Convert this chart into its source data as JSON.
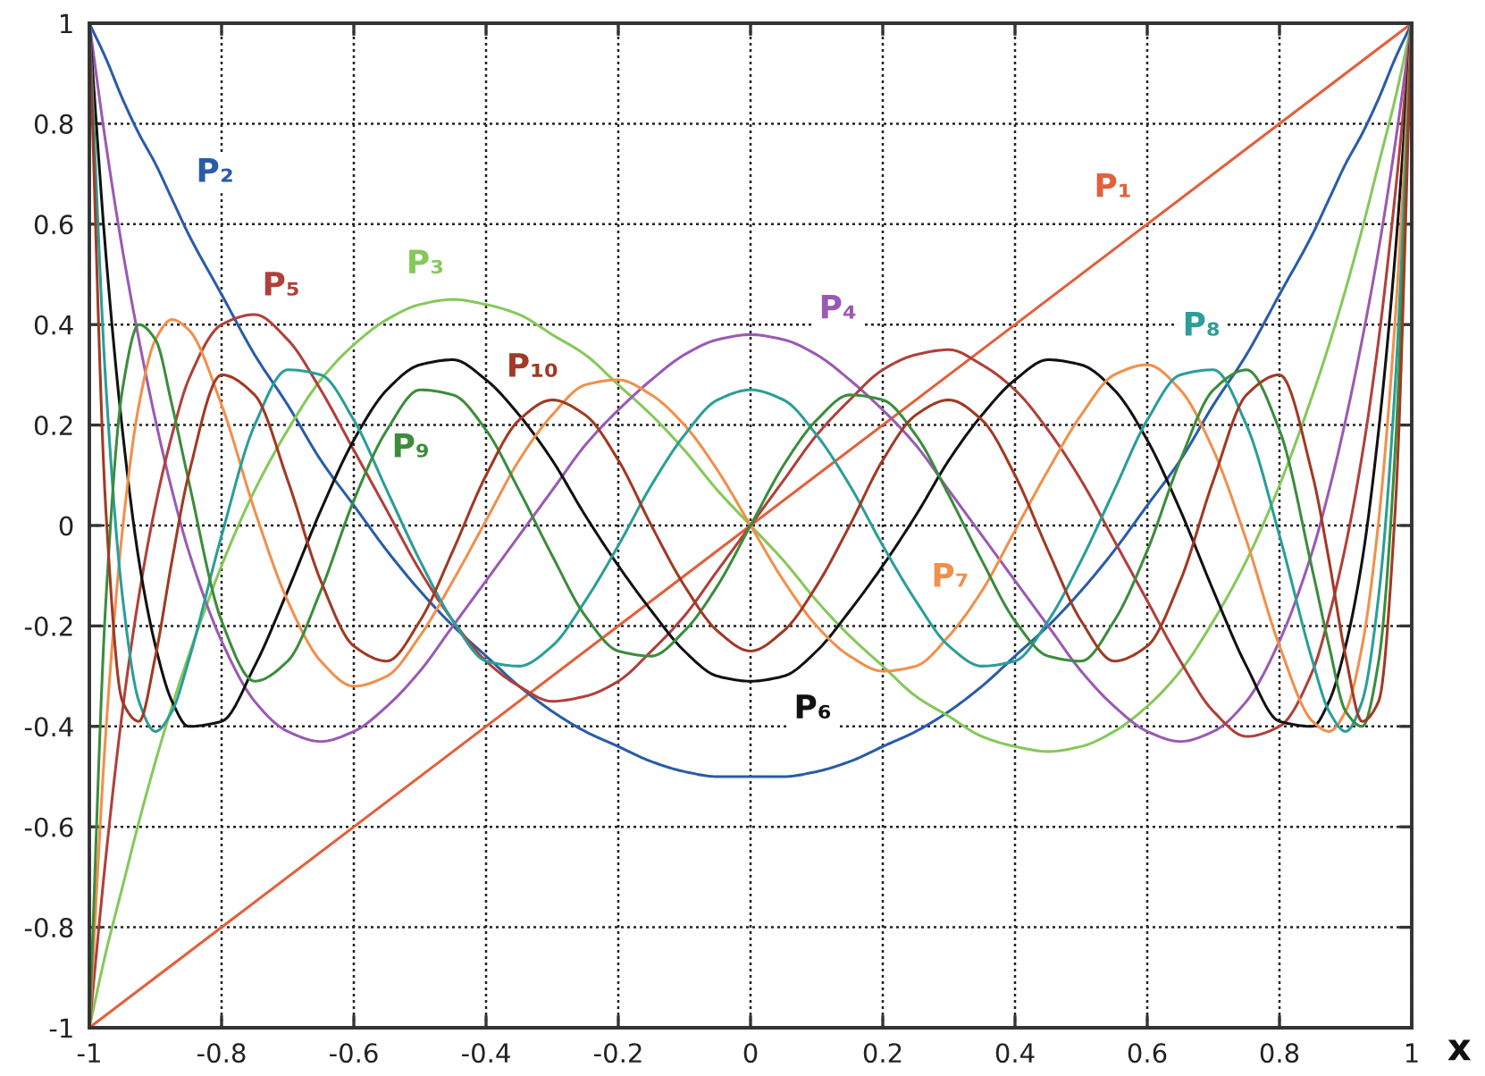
{
  "chart_data": {
    "type": "line",
    "xlabel": "x",
    "xlim": [
      -1,
      1
    ],
    "ylim": [
      -1,
      1
    ],
    "xticks": [
      -1,
      -0.8,
      -0.6,
      -0.4,
      -0.2,
      0,
      0.2,
      0.4,
      0.6,
      0.8,
      1
    ],
    "yticks": [
      -1,
      -0.8,
      -0.6,
      -0.4,
      -0.2,
      0,
      0.2,
      0.4,
      0.6,
      0.8,
      1
    ],
    "grid": true,
    "x": [
      -1,
      -0.975,
      -0.95,
      -0.925,
      -0.9,
      -0.875,
      -0.85,
      -0.8,
      -0.75,
      -0.7,
      -0.65,
      -0.6,
      -0.55,
      -0.5,
      -0.45,
      -0.4,
      -0.35,
      -0.3,
      -0.25,
      -0.2,
      -0.15,
      -0.1,
      -0.05,
      0,
      0.05,
      0.1,
      0.15,
      0.2,
      0.25,
      0.3,
      0.35,
      0.4,
      0.45,
      0.5,
      0.55,
      0.6,
      0.65,
      0.7,
      0.75,
      0.8,
      0.85,
      0.875,
      0.9,
      0.925,
      0.95,
      0.975,
      1
    ],
    "series": [
      {
        "name": "P₁",
        "color": "#e2603c",
        "x": [
          -1,
          1
        ],
        "values": [
          -1,
          1
        ]
      },
      {
        "name": "P₂",
        "color": "#2a5ca8",
        "values": [
          1,
          0.93,
          0.85,
          0.78,
          0.72,
          0.65,
          0.58,
          0.46,
          0.34,
          0.24,
          0.13,
          0.04,
          -0.05,
          -0.13,
          -0.2,
          -0.26,
          -0.32,
          -0.37,
          -0.41,
          -0.44,
          -0.47,
          -0.49,
          -0.5,
          -0.5,
          -0.5,
          -0.49,
          -0.47,
          -0.44,
          -0.41,
          -0.37,
          -0.32,
          -0.26,
          -0.2,
          -0.13,
          -0.05,
          0.04,
          0.13,
          0.24,
          0.34,
          0.46,
          0.58,
          0.65,
          0.72,
          0.78,
          0.85,
          0.93,
          1
        ]
      },
      {
        "name": "P₃",
        "color": "#86c85a",
        "values": [
          -1,
          -0.85,
          -0.72,
          -0.59,
          -0.47,
          -0.36,
          -0.26,
          -0.08,
          0.07,
          0.19,
          0.29,
          0.36,
          0.41,
          0.44,
          0.45,
          0.44,
          0.42,
          0.38,
          0.34,
          0.28,
          0.22,
          0.15,
          0.07,
          0,
          -0.07,
          -0.15,
          -0.22,
          -0.28,
          -0.34,
          -0.38,
          -0.42,
          -0.44,
          -0.45,
          -0.44,
          -0.41,
          -0.36,
          -0.29,
          -0.19,
          -0.07,
          0.08,
          0.26,
          0.36,
          0.47,
          0.59,
          0.72,
          0.85,
          1
        ]
      },
      {
        "name": "P₄",
        "color": "#9a5ab4",
        "values": [
          1,
          0.76,
          0.55,
          0.37,
          0.21,
          0.07,
          -0.05,
          -0.23,
          -0.35,
          -0.41,
          -0.43,
          -0.41,
          -0.36,
          -0.29,
          -0.2,
          -0.11,
          -0.02,
          0.07,
          0.16,
          0.23,
          0.29,
          0.34,
          0.37,
          0.38,
          0.37,
          0.34,
          0.29,
          0.23,
          0.16,
          0.07,
          -0.02,
          -0.11,
          -0.2,
          -0.29,
          -0.36,
          -0.41,
          -0.43,
          -0.41,
          -0.35,
          -0.23,
          -0.05,
          0.07,
          0.21,
          0.37,
          0.55,
          0.76,
          1
        ]
      },
      {
        "name": "P₅",
        "color": "#b0403a",
        "values": [
          -1,
          -0.66,
          -0.37,
          -0.14,
          0.04,
          0.18,
          0.29,
          0.4,
          0.42,
          0.37,
          0.27,
          0.15,
          0.03,
          -0.09,
          -0.19,
          -0.27,
          -0.32,
          -0.35,
          -0.34,
          -0.31,
          -0.25,
          -0.18,
          -0.09,
          0,
          0.09,
          0.18,
          0.25,
          0.31,
          0.34,
          0.35,
          0.32,
          0.27,
          0.19,
          0.09,
          -0.03,
          -0.15,
          -0.27,
          -0.37,
          -0.42,
          -0.4,
          -0.29,
          -0.18,
          -0.04,
          0.14,
          0.37,
          0.66,
          1
        ]
      },
      {
        "name": "P₆",
        "color": "#111111",
        "values": [
          1,
          0.54,
          0.19,
          -0.07,
          -0.24,
          -0.35,
          -0.4,
          -0.39,
          -0.28,
          -0.13,
          0.03,
          0.17,
          0.27,
          0.32,
          0.33,
          0.29,
          0.22,
          0.13,
          0.02,
          -0.08,
          -0.17,
          -0.25,
          -0.3,
          -0.31,
          -0.3,
          -0.25,
          -0.17,
          -0.08,
          0.02,
          0.13,
          0.22,
          0.29,
          0.33,
          0.32,
          0.27,
          0.17,
          0.03,
          -0.13,
          -0.28,
          -0.39,
          -0.4,
          -0.35,
          -0.24,
          -0.07,
          0.19,
          0.54,
          1
        ]
      },
      {
        "name": "P₇",
        "color": "#f0904c",
        "values": [
          -1,
          -0.41,
          -0.01,
          0.24,
          0.37,
          0.41,
          0.39,
          0.24,
          0.03,
          -0.15,
          -0.27,
          -0.32,
          -0.3,
          -0.22,
          -0.11,
          0.01,
          0.13,
          0.22,
          0.28,
          0.29,
          0.26,
          0.2,
          0.11,
          0,
          -0.11,
          -0.2,
          -0.26,
          -0.29,
          -0.28,
          -0.22,
          -0.13,
          -0.01,
          0.11,
          0.22,
          0.3,
          0.32,
          0.27,
          0.15,
          -0.03,
          -0.24,
          -0.39,
          -0.41,
          -0.37,
          -0.24,
          0.01,
          0.41,
          1
        ]
      },
      {
        "name": "P₈",
        "color": "#2a9e98",
        "values": [
          1,
          0.28,
          -0.14,
          -0.35,
          -0.41,
          -0.37,
          -0.27,
          -0.02,
          0.2,
          0.31,
          0.3,
          0.21,
          0.07,
          -0.07,
          -0.19,
          -0.27,
          -0.28,
          -0.24,
          -0.15,
          -0.04,
          0.08,
          0.18,
          0.25,
          0.27,
          0.25,
          0.18,
          0.08,
          -0.04,
          -0.15,
          -0.24,
          -0.28,
          -0.27,
          -0.19,
          -0.07,
          0.07,
          0.21,
          0.3,
          0.31,
          0.2,
          -0.02,
          -0.27,
          -0.37,
          -0.41,
          -0.35,
          -0.14,
          0.28,
          1
        ]
      },
      {
        "name": "P₉",
        "color": "#3c8c3c",
        "values": [
          -1,
          -0.15,
          0.27,
          0.4,
          0.37,
          0.24,
          0.09,
          -0.19,
          -0.31,
          -0.27,
          -0.13,
          0.05,
          0.19,
          0.27,
          0.26,
          0.19,
          0.07,
          -0.06,
          -0.18,
          -0.25,
          -0.26,
          -0.21,
          -0.12,
          0,
          0.12,
          0.21,
          0.26,
          0.25,
          0.18,
          0.06,
          -0.07,
          -0.19,
          -0.26,
          -0.27,
          -0.19,
          -0.05,
          0.13,
          0.27,
          0.31,
          0.19,
          -0.09,
          -0.24,
          -0.37,
          -0.4,
          -0.27,
          0.15,
          1
        ]
      },
      {
        "name": "P₁₀",
        "color": "#a03a24",
        "values": [
          1,
          0.03,
          -0.35,
          -0.39,
          -0.26,
          -0.07,
          0.1,
          0.3,
          0.26,
          0.09,
          -0.11,
          -0.24,
          -0.27,
          -0.19,
          -0.05,
          0.1,
          0.21,
          0.25,
          0.22,
          0.13,
          0,
          -0.12,
          -0.21,
          -0.25,
          -0.21,
          -0.12,
          0,
          0.13,
          0.22,
          0.25,
          0.21,
          0.1,
          -0.05,
          -0.19,
          -0.27,
          -0.24,
          -0.11,
          0.09,
          0.26,
          0.3,
          0.1,
          -0.07,
          -0.26,
          -0.39,
          -0.35,
          0.03,
          1
        ]
      }
    ]
  }
}
